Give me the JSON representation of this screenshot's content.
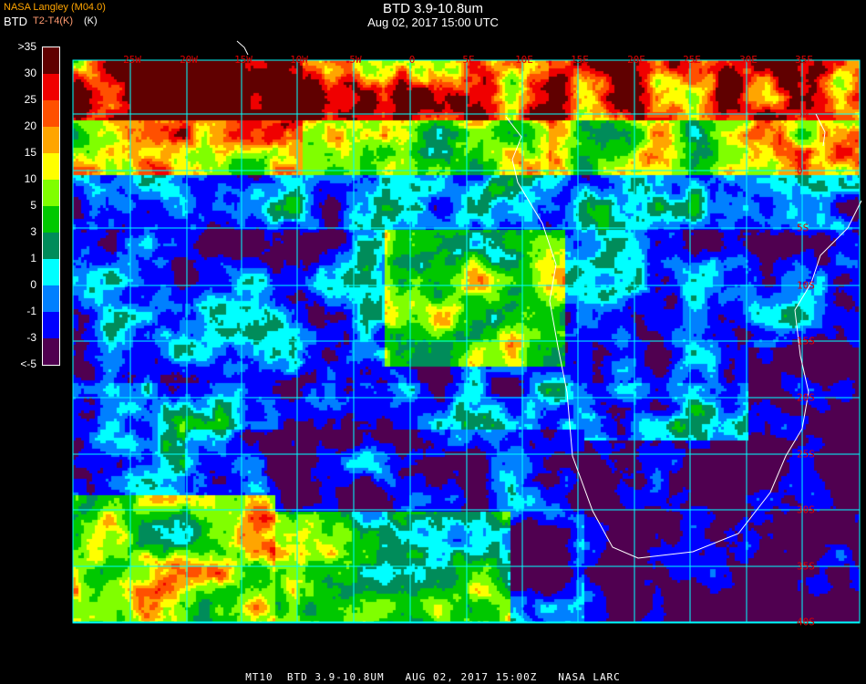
{
  "header": {
    "title": "BTD 3.9-10.8um",
    "subtitle": "Aug 02, 2017 15:00 UTC",
    "credit": "NASA Langley (M04.0)",
    "legend_title": "BTD",
    "units": "T2-T4(K)",
    "units_overlay": "(K)"
  },
  "legend": {
    "labels": [
      ">35",
      "30",
      "25",
      "20",
      "15",
      "10",
      "5",
      "3",
      "1",
      "0",
      "-1",
      "-3",
      "<-5"
    ],
    "colors": [
      "#600000",
      "#f00000",
      "#ff5000",
      "#ffa500",
      "#ffff00",
      "#80ff00",
      "#00c800",
      "#008c5a",
      "#00ffff",
      "#0080ff",
      "#0000ff",
      "#500050"
    ]
  },
  "map": {
    "grid_color": "#00ffff",
    "coast_color": "#ffffff",
    "label_color": "#e00000",
    "longitudes": [
      "25W",
      "20W",
      "15W",
      "10W",
      "5W",
      "0",
      "5E",
      "10E",
      "15E",
      "20E",
      "25E",
      "30E",
      "35E"
    ],
    "latitudes": [
      "5N",
      "0",
      "5S",
      "10S",
      "15S",
      "20S",
      "25S",
      "30S",
      "35S",
      "40S"
    ]
  },
  "footer": {
    "caption": "MT10  BTD 3.9-10.8UM   AUG 02, 2017 15:00Z   NASA LARC"
  }
}
